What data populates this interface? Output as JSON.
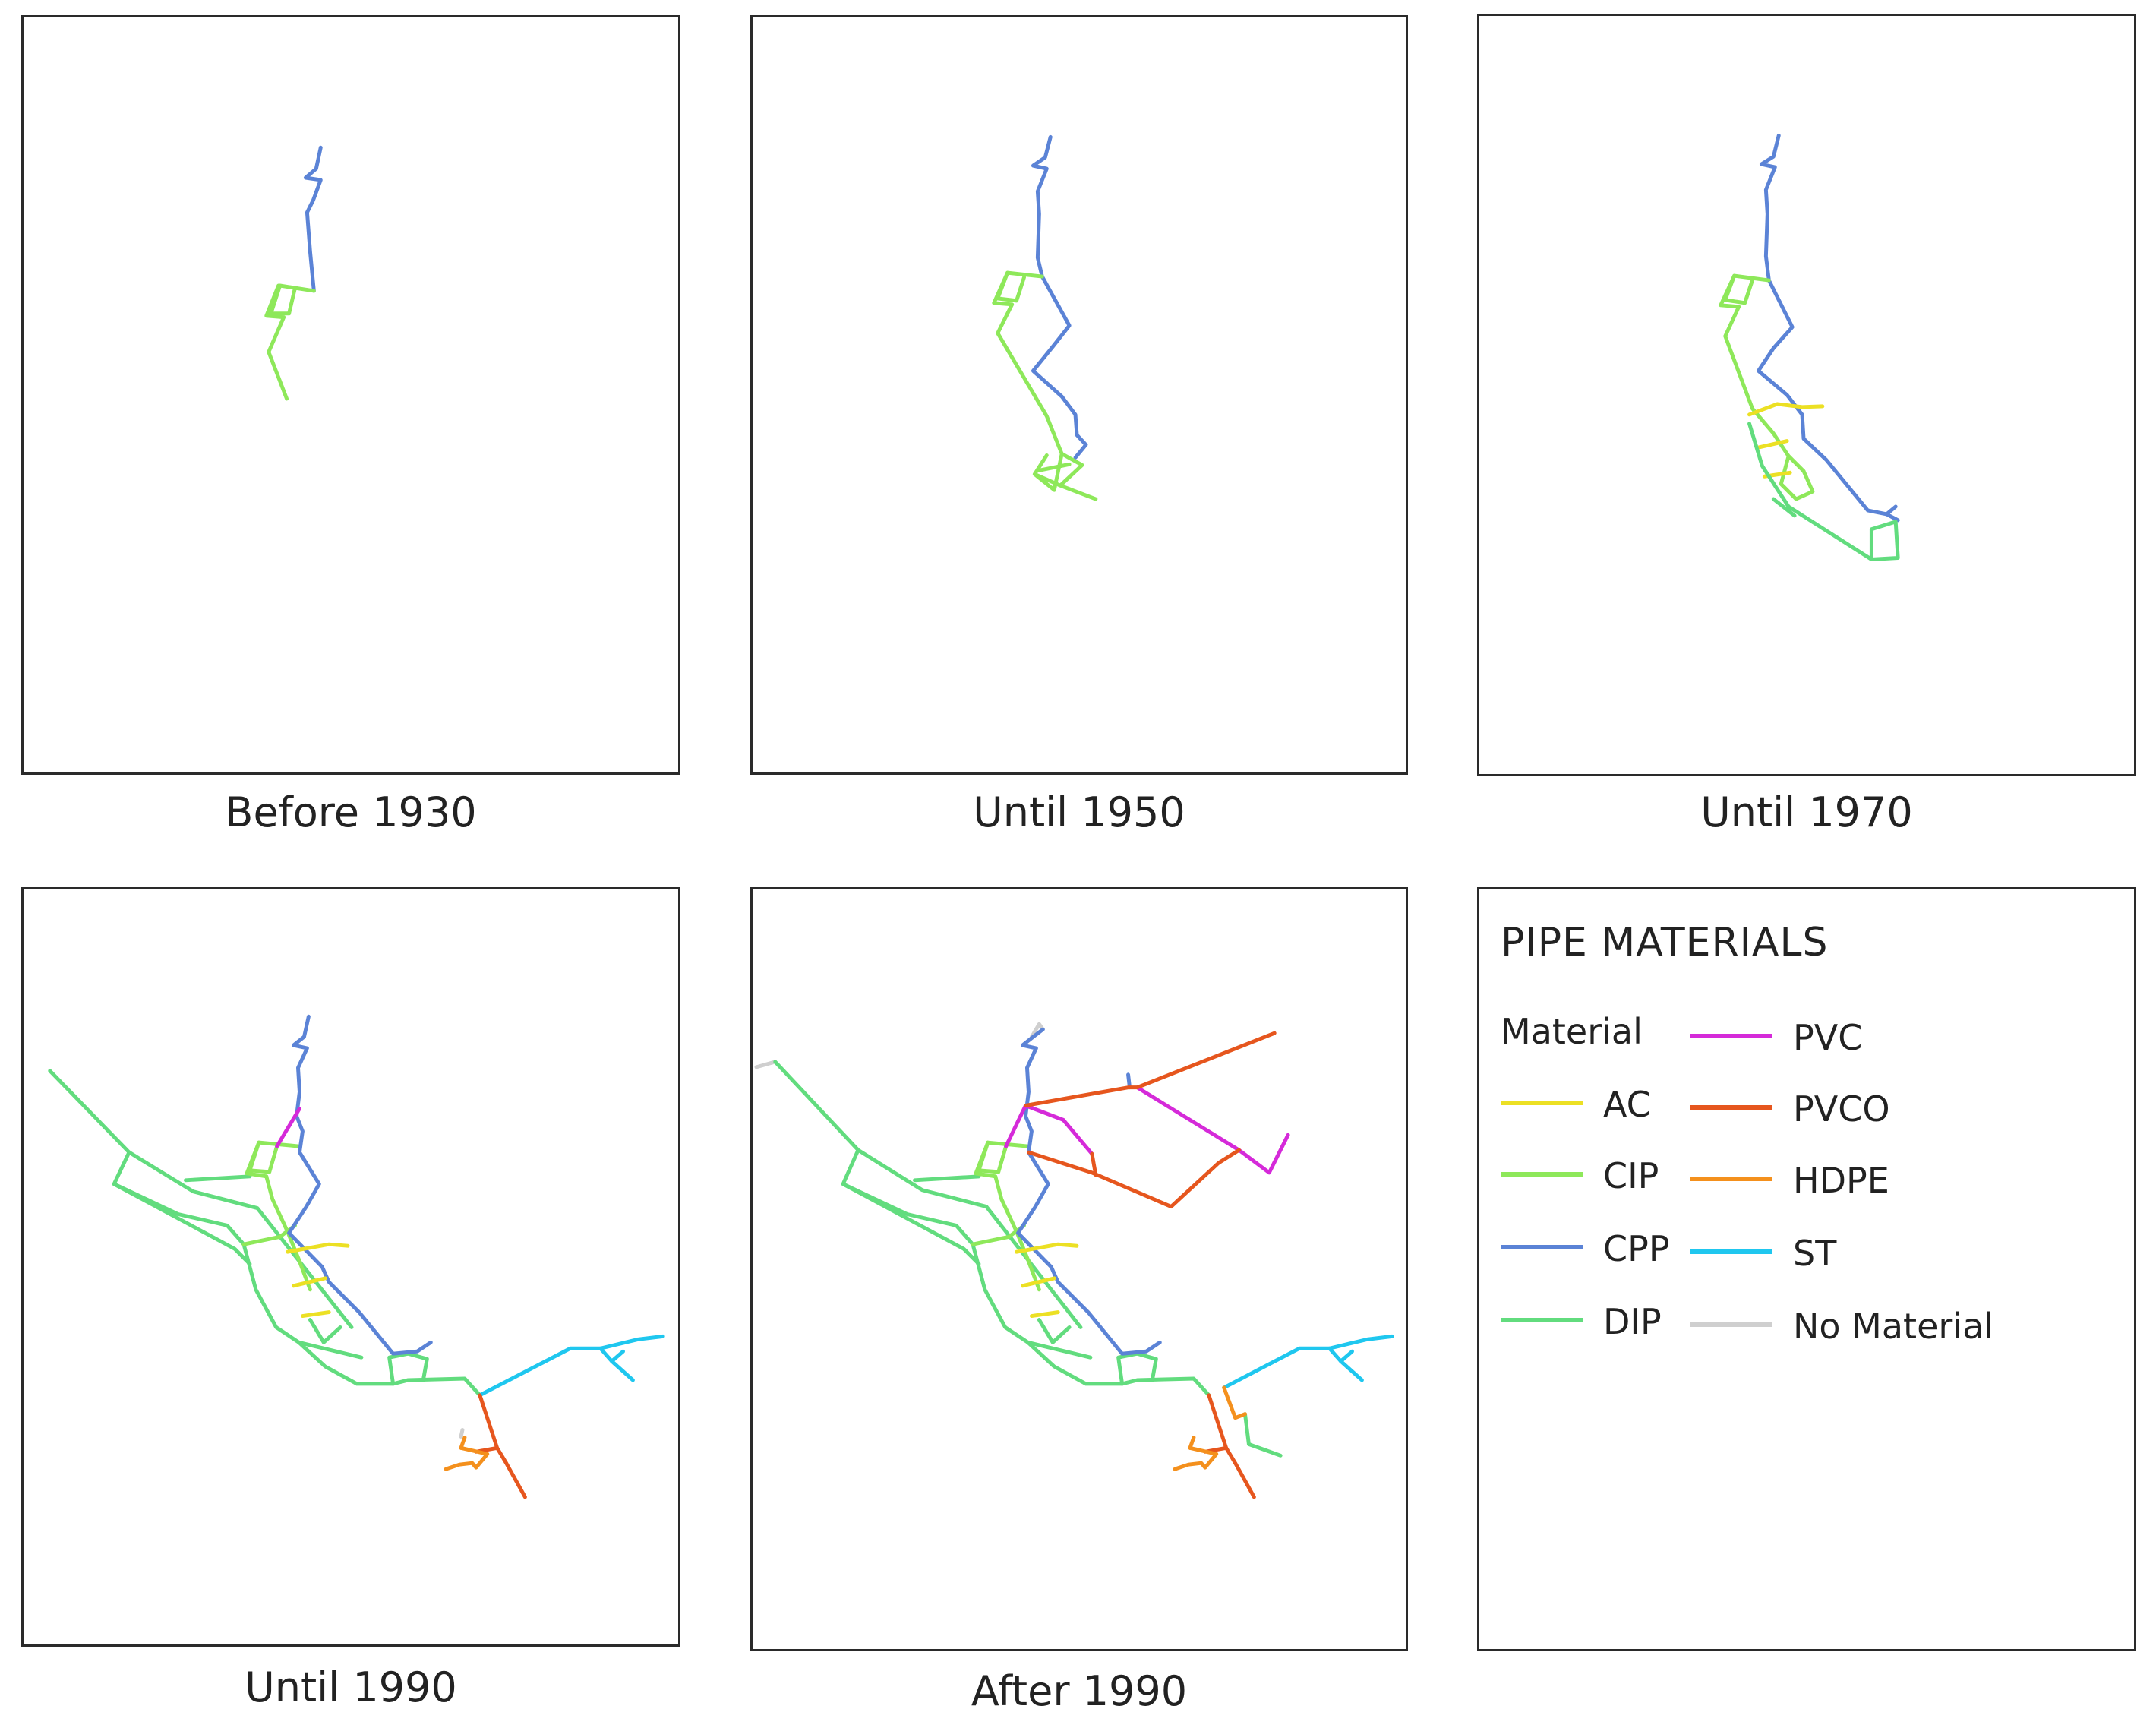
{
  "panels": [
    {
      "caption": "Before 1930"
    },
    {
      "caption": "Until 1950"
    },
    {
      "caption": "Until 1970"
    },
    {
      "caption": "Until 1990"
    },
    {
      "caption": "After 1990"
    }
  ],
  "legend": {
    "title": "PIPE MATERIALS",
    "subtitle": "Material",
    "items": [
      {
        "label": "AC",
        "color": "#ece024"
      },
      {
        "label": "CIP",
        "color": "#8ee85a"
      },
      {
        "label": "CPP",
        "color": "#5b83d6"
      },
      {
        "label": "DIP",
        "color": "#62dc7e"
      },
      {
        "label": "PVC",
        "color": "#d52ad9"
      },
      {
        "label": "PVCO",
        "color": "#e6561e"
      },
      {
        "label": "HDPE",
        "color": "#f4901d"
      },
      {
        "label": "ST",
        "color": "#1fc7ef"
      },
      {
        "label": "No Material",
        "color": "#cfcfcf"
      }
    ]
  }
}
